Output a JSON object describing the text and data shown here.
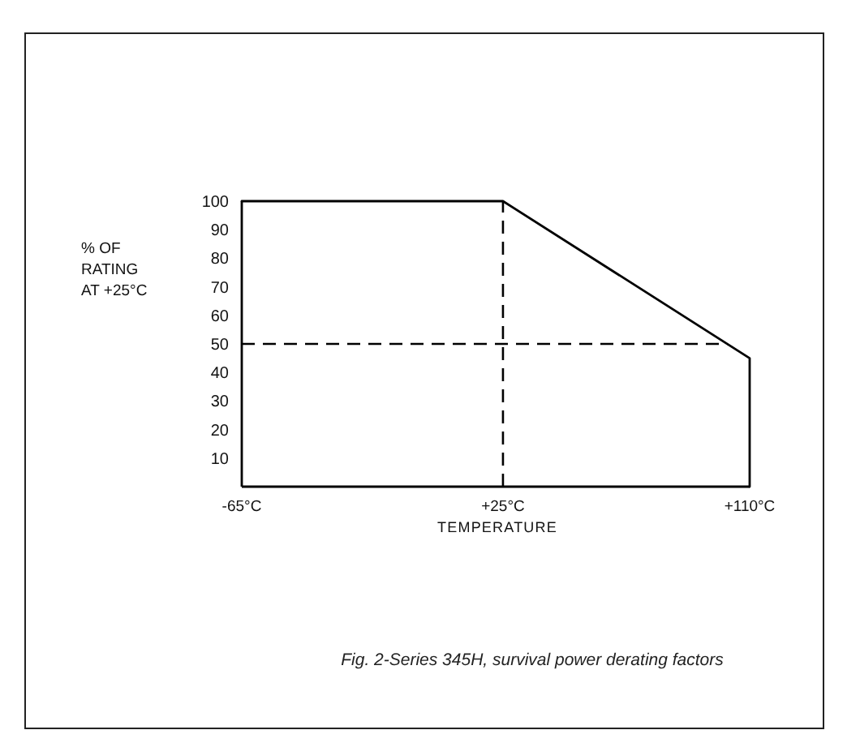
{
  "chart_data": {
    "type": "line",
    "ylabel": "% OF\nRATING\nAT +25°C",
    "xlabel": "TEMPERATURE",
    "annotations": [
      "Fig. 2-Series 345H, survival power derating factors"
    ],
    "x": [
      -65,
      25,
      110,
      110
    ],
    "values": [
      100,
      100,
      45,
      0
    ],
    "color": "#000000",
    "line_style": "solid",
    "xlim": [
      -65,
      110
    ],
    "ylim": [
      0,
      100
    ],
    "xticks": [
      {
        "value": -65,
        "label": "-65°C"
      },
      {
        "value": 25,
        "label": "+25°C"
      },
      {
        "value": 110,
        "label": "+110°C"
      }
    ],
    "yticks": [
      10,
      20,
      30,
      40,
      50,
      60,
      70,
      80,
      90,
      100
    ],
    "ref_lines": [
      {
        "axis": "x",
        "value": 25,
        "line_style": "dashed",
        "color": "#000000"
      },
      {
        "axis": "y",
        "value": 50,
        "line_style": "dashed",
        "color": "#000000"
      }
    ]
  }
}
